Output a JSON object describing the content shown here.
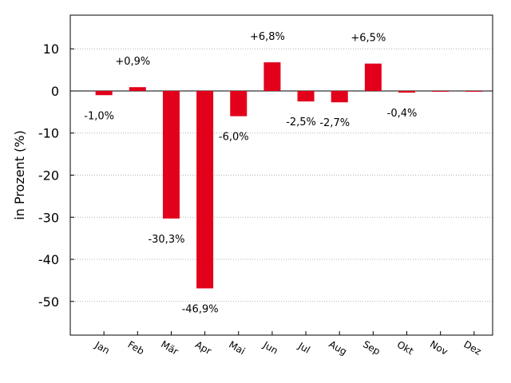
{
  "chart_data": {
    "type": "bar",
    "categories": [
      "Jan",
      "Feb",
      "Mär",
      "Apr",
      "Mai",
      "Jun",
      "Jul",
      "Aug",
      "Sep",
      "Okt",
      "Nov",
      "Dez"
    ],
    "values": [
      -1.0,
      0.9,
      -30.3,
      -46.9,
      -6.0,
      6.8,
      -2.5,
      -2.7,
      6.5,
      -0.4,
      0,
      0
    ],
    "data_labels": [
      "-1,0%",
      "+0,9%",
      "-30,3%",
      "-46,9%",
      "-6,0%",
      "+6,8%",
      "-2,5%",
      "-2,7%",
      "+6,5%",
      "-0,4%",
      "",
      ""
    ],
    "title": "",
    "xlabel": "",
    "ylabel": "in Prozent (%)",
    "ylim": [
      -58,
      18
    ],
    "yticks": [
      10,
      0,
      -10,
      -20,
      -30,
      -40,
      -50
    ],
    "grid": "horizontal dotted",
    "legend": "none",
    "bar_color": "#e2001a"
  }
}
